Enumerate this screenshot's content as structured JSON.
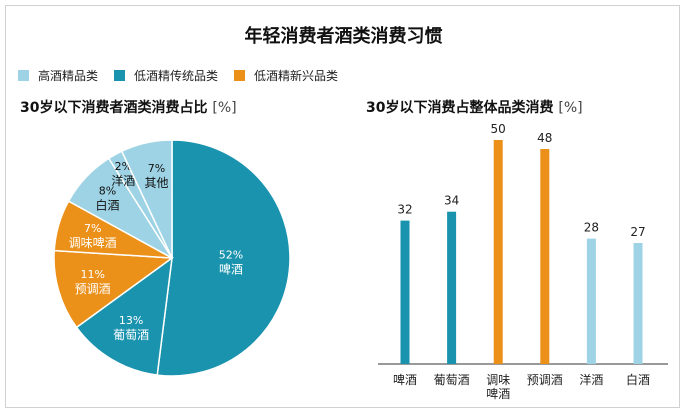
{
  "title": "年轻消费者酒类消费习惯",
  "colors": {
    "high_end": "#9dd3e4",
    "traditional": "#1a93ae",
    "emerging": "#eb9019"
  },
  "legend": [
    {
      "label": "高酒精品类",
      "color": "#9dd3e4"
    },
    {
      "label": "低酒精传统品类",
      "color": "#1a93ae"
    },
    {
      "label": "低酒精新兴品类",
      "color": "#eb9019"
    }
  ],
  "chart_data": [
    {
      "type": "pie",
      "title": "30岁以下消费者酒类消费占比",
      "unit": "[%]",
      "slices": [
        {
          "label": "啤酒",
          "value": 52,
          "value_label": "52%",
          "color": "#1a93ae"
        },
        {
          "label": "葡萄酒",
          "value": 13,
          "value_label": "13%",
          "color": "#1a93ae"
        },
        {
          "label": "预调酒",
          "value": 11,
          "value_label": "11%",
          "color": "#eb9019"
        },
        {
          "label": "调味啤酒",
          "value": 7,
          "value_label": "7%",
          "color": "#eb9019"
        },
        {
          "label": "白酒",
          "value": 8,
          "value_label": "8%",
          "color": "#9dd3e4"
        },
        {
          "label": "洋酒",
          "value": 2,
          "value_label": "2%",
          "color": "#9dd3e4"
        },
        {
          "label": "其他",
          "value": 7,
          "value_label": "7%",
          "color": "#9dd3e4"
        }
      ]
    },
    {
      "type": "bar",
      "title": "30岁以下消费占整体品类消费",
      "unit": "[%]",
      "categories": [
        "啤酒",
        "葡萄酒",
        "调味\n啤酒",
        "预调酒",
        "洋酒",
        "白酒"
      ],
      "values": [
        32,
        34,
        50,
        48,
        28,
        27
      ],
      "colors": [
        "#1a93ae",
        "#1a93ae",
        "#eb9019",
        "#eb9019",
        "#9dd3e4",
        "#9dd3e4"
      ],
      "ylim": [
        0,
        50
      ]
    }
  ]
}
